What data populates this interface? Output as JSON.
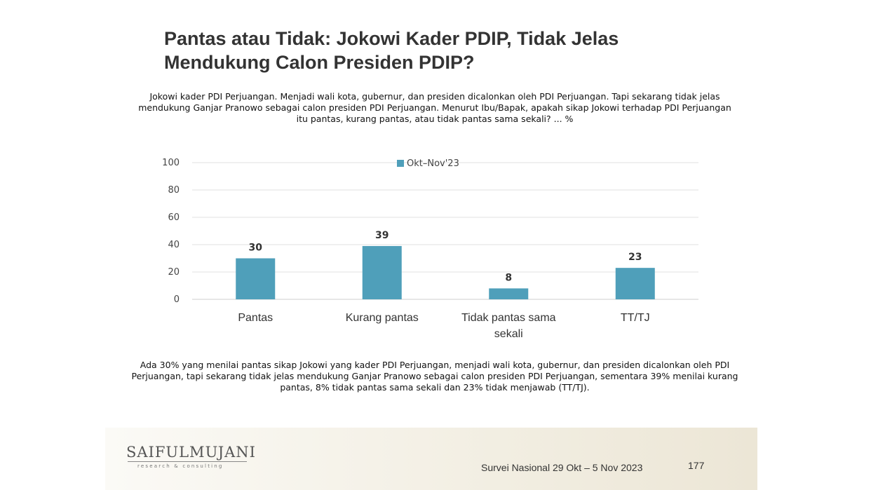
{
  "slide": {
    "title": "Pantas atau Tidak: Jokowi Kader PDIP, Tidak Jelas Mendukung Calon Presiden PDIP?",
    "question": "Jokowi kader PDI Perjuangan. Menjadi wali kota, gubernur, dan presiden dicalonkan oleh PDI Perjuangan. Tapi sekarang tidak jelas mendukung Ganjar Pranowo sebagai calon presiden PDI Perjuangan. Menurut Ibu/Bapak, apakah sikap Jokowi terhadap PDI Perjuangan itu pantas, kurang pantas, atau tidak pantas sama sekali? ... %",
    "note": "Ada 30% yang menilai pantas sikap Jokowi yang kader PDI Perjuangan, menjadi wali kota, gubernur, dan presiden dicalonkan oleh PDI Perjuangan, tapi sekarang tidak jelas mendukung Ganjar Pranowo sebagai calon presiden PDI Perjuangan, sementara 39% menilai kurang pantas, 8% tidak pantas sama sekali dan 23% tidak menjawab (TT/TJ).",
    "logo": "SAIFULMUJANI",
    "logo_sub": "research & consulting",
    "survey_label": "Survei Nasional 29 Okt – 5 Nov 2023",
    "page_number": "177"
  },
  "chart_data": {
    "type": "bar",
    "categories": [
      "Pantas",
      "Kurang pantas",
      "Tidak pantas sama sekali",
      "TT/TJ"
    ],
    "series": [
      {
        "name": "Okt–Nov'23",
        "values": [
          30,
          39,
          8,
          23
        ],
        "color": "#4f9fba"
      }
    ],
    "data_labels": [
      "30",
      "39",
      "8",
      "23"
    ],
    "ylim": [
      0,
      100
    ],
    "yticks": [
      0,
      20,
      40,
      60,
      80,
      100
    ],
    "grid": true,
    "legend": "top-center",
    "title": "",
    "xlabel": "",
    "ylabel": ""
  }
}
